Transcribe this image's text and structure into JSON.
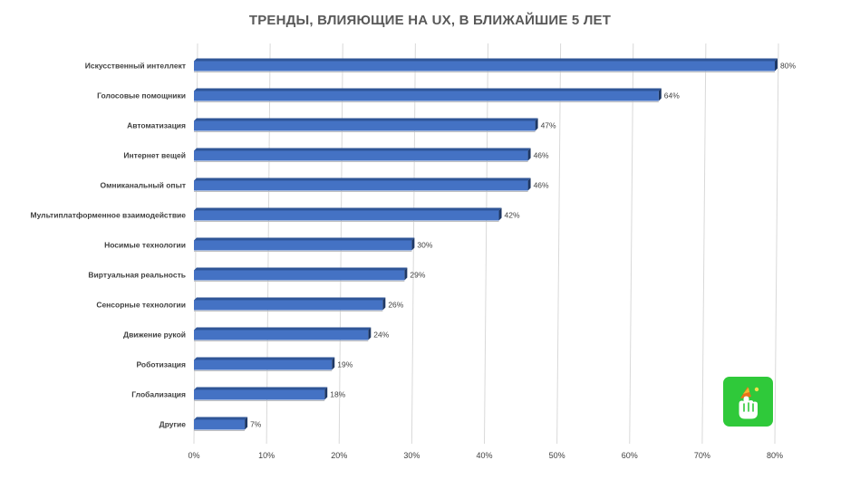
{
  "chart_data": {
    "type": "bar",
    "orientation": "horizontal",
    "title": "ТРЕНДЫ, ВЛИЯЮЩИЕ НА UX, В БЛИЖАЙШИЕ 5 ЛЕТ",
    "xlabel": "",
    "ylabel": "",
    "categories": [
      "Искусственный интеллект",
      "Голосовые помощники",
      "Автоматизация",
      "Интернет вещей",
      "Омниканальный опыт",
      "Мультиплатформенное взаимодействие",
      "Носимые технологии",
      "Виртуальная реальность",
      "Сенсорные технологии",
      "Движение рукой",
      "Роботизация",
      "Глобализация",
      "Другие"
    ],
    "values": [
      80,
      64,
      47,
      46,
      46,
      42,
      30,
      29,
      26,
      24,
      19,
      18,
      7
    ],
    "value_labels": [
      "80%",
      "64%",
      "47%",
      "46%",
      "46%",
      "42%",
      "30%",
      "29%",
      "26%",
      "24%",
      "19%",
      "18%",
      "7%"
    ],
    "x_ticks": [
      "0%",
      "10%",
      "20%",
      "30%",
      "40%",
      "50%",
      "60%",
      "70%",
      "80%"
    ],
    "xlim": [
      0,
      80
    ],
    "grid": "vertical",
    "legend": "none",
    "colors": {
      "bar_front": "#4472C4",
      "bar_top": "#2F5597",
      "bar_side": "#1F3864",
      "grid": "#D9D9D9",
      "text": "#404040",
      "title": "#595959"
    }
  },
  "logo": {
    "icon": "hand-logo-icon",
    "background": "#2FC93A"
  }
}
